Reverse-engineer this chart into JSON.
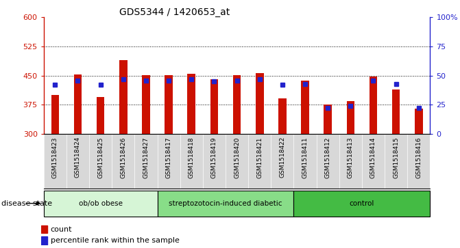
{
  "title": "GDS5344 / 1420653_at",
  "samples": [
    "GSM1518423",
    "GSM1518424",
    "GSM1518425",
    "GSM1518426",
    "GSM1518427",
    "GSM1518417",
    "GSM1518418",
    "GSM1518419",
    "GSM1518420",
    "GSM1518421",
    "GSM1518422",
    "GSM1518411",
    "GSM1518412",
    "GSM1518413",
    "GSM1518414",
    "GSM1518415",
    "GSM1518416"
  ],
  "bar_heights": [
    400,
    453,
    395,
    490,
    452,
    452,
    455,
    440,
    452,
    457,
    392,
    438,
    375,
    385,
    447,
    415,
    365
  ],
  "bar_base": 300,
  "percentile_ranks": [
    42,
    46,
    42,
    47,
    46,
    46,
    47,
    45,
    46,
    47,
    42,
    43,
    22,
    24,
    46,
    43,
    22
  ],
  "bar_color": "#cc1100",
  "blue_color": "#2222cc",
  "groups": [
    {
      "label": "ob/ob obese",
      "start": 0,
      "end": 5,
      "color": "#d6f5d6"
    },
    {
      "label": "streptozotocin-induced diabetic",
      "start": 5,
      "end": 11,
      "color": "#88dd88"
    },
    {
      "label": "control",
      "start": 11,
      "end": 17,
      "color": "#44bb44"
    }
  ],
  "ylim_left": [
    300,
    600
  ],
  "ylim_right": [
    0,
    100
  ],
  "yticks_left": [
    300,
    375,
    450,
    525,
    600
  ],
  "yticks_right": [
    0,
    25,
    50,
    75,
    100
  ],
  "ytick_right_labels": [
    "0",
    "25",
    "50",
    "75",
    "100%"
  ],
  "grid_yticks": [
    375,
    450,
    525
  ],
  "plot_bg_color": "#ffffff",
  "tick_area_bg": "#d8d8d8",
  "disease_state_label": "disease state"
}
